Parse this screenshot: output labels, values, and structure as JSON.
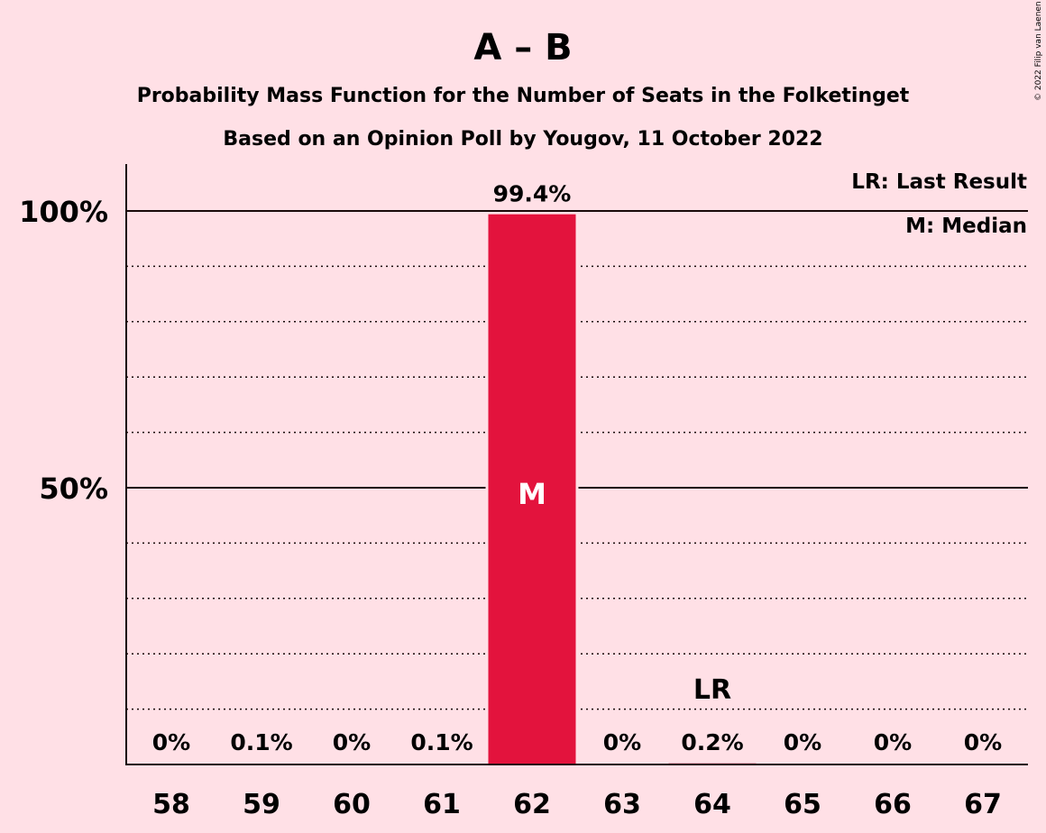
{
  "chart_data": {
    "type": "bar",
    "title": "A – B",
    "subtitle_1": "Probability Mass Function for the Number of Seats in the Folketinget",
    "subtitle_2": "Based on an Opinion Poll by Yougov, 11 October 2022",
    "categories": [
      "58",
      "59",
      "60",
      "61",
      "62",
      "63",
      "64",
      "65",
      "66",
      "67"
    ],
    "values": [
      0,
      0.1,
      0,
      0.1,
      99.4,
      0,
      0.2,
      0,
      0,
      0
    ],
    "value_labels": [
      "0%",
      "0.1%",
      "0%",
      "0.1%",
      "99.4%",
      "0%",
      "0.2%",
      "0%",
      "0%",
      "0%"
    ],
    "ylim": [
      0,
      110
    ],
    "y_ticks": [
      {
        "value": 50,
        "label": "50%"
      },
      {
        "value": 100,
        "label": "100%"
      }
    ],
    "minor_gridlines": [
      10,
      20,
      30,
      40,
      60,
      70,
      80,
      90
    ],
    "median_category": "62",
    "median_marker": "M",
    "last_result_category": "64",
    "last_result_marker": "LR",
    "legend": [
      "LR: Last Result",
      "M: Median"
    ],
    "legend_position": "top-right",
    "bar_color": "#E3133D",
    "grid": true
  },
  "copyright": "© 2022 Filip van Laenen"
}
